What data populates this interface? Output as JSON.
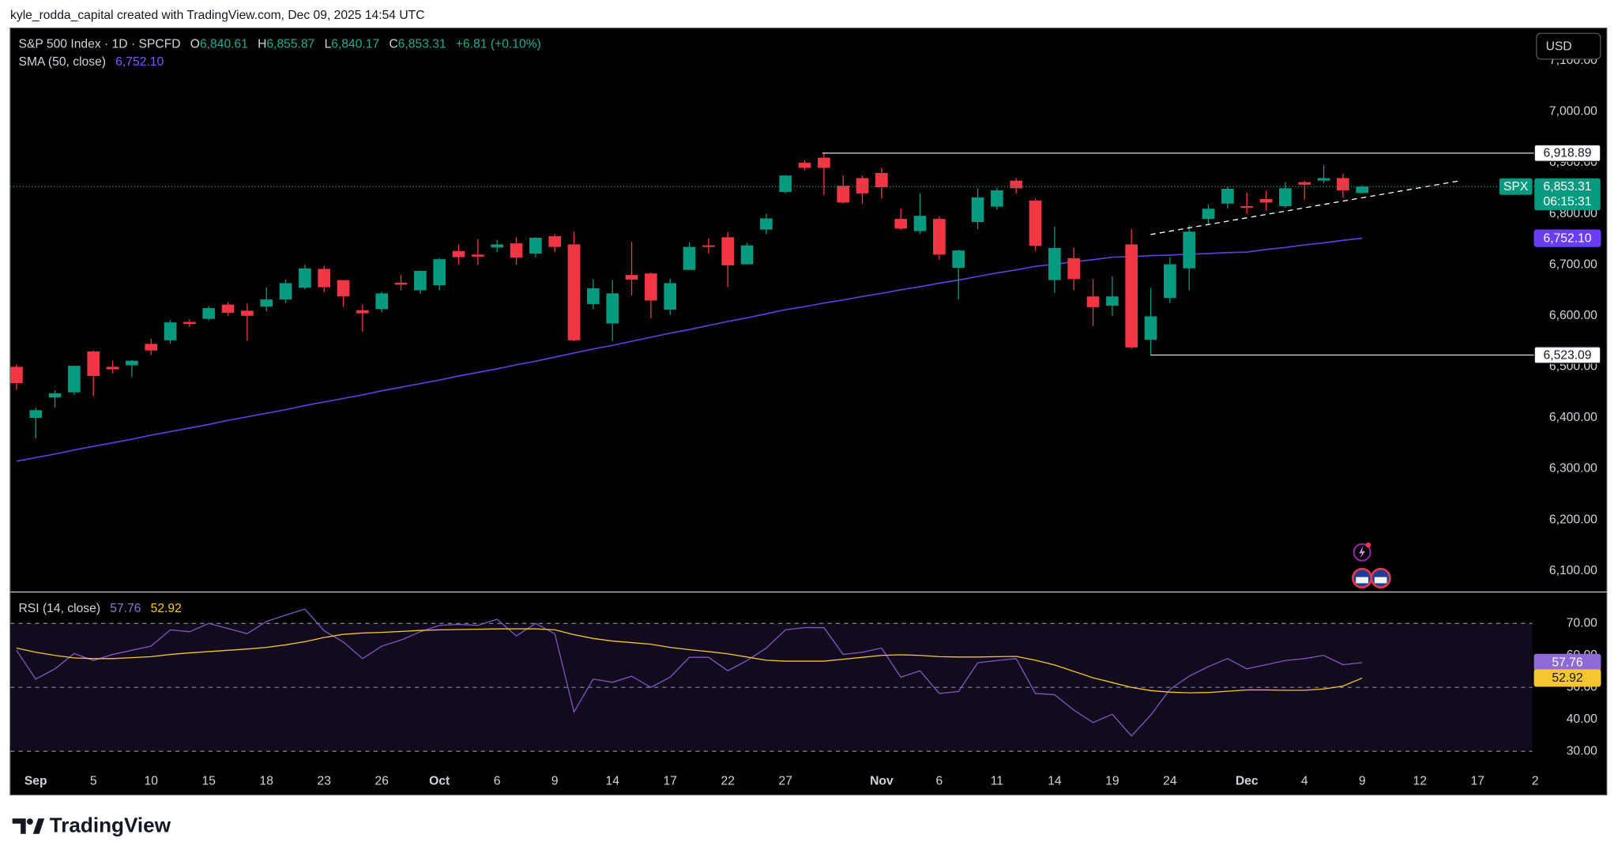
{
  "header": {
    "attribution": "kyle_rodda_capital created with TradingView.com, Dec 09, 2025 14:54 UTC",
    "currency": "USD",
    "brand": "TradingView"
  },
  "chart_data": [
    {
      "type": "candlestick",
      "title": "S&P 500 Index · 1D · SPCFD",
      "legend_ohlc": [
        {
          "key": "O",
          "value": "6,840.61"
        },
        {
          "key": "H",
          "value": "6,855.87"
        },
        {
          "key": "L",
          "value": "6,840.17"
        },
        {
          "key": "C",
          "value": "6,853.31"
        }
      ],
      "change": "+6.81 (+0.10%)",
      "categories": [
        null,
        "Sep",
        null,
        null,
        "5",
        null,
        null,
        "10",
        null,
        null,
        "15",
        null,
        null,
        "18",
        null,
        null,
        "23",
        null,
        null,
        "26",
        null,
        null,
        "Oct",
        null,
        null,
        "6",
        null,
        null,
        "9",
        null,
        null,
        "14",
        null,
        null,
        "17",
        null,
        null,
        "22",
        null,
        null,
        "27",
        null,
        null,
        null,
        null,
        "Nov",
        null,
        null,
        "6",
        null,
        null,
        "11",
        null,
        null,
        "14",
        null,
        null,
        "19",
        null,
        null,
        "24",
        null,
        null,
        null,
        "Dec",
        null,
        null,
        "4",
        null,
        null,
        "9",
        null,
        null,
        "12",
        null,
        null,
        "17",
        null,
        null,
        "2"
      ],
      "series": [
        {
          "name": "SPX",
          "up_color": "#089981",
          "down_color": "#f23645",
          "last_label": "6,853.31",
          "countdown": "06:15:31",
          "open": [
            6500,
            6400,
            6440,
            6450,
            6530,
            6500,
            6503,
            6545,
            6552,
            6588,
            6594,
            6622,
            6610,
            6618,
            6632,
            6655,
            6692,
            6670,
            6611,
            6613,
            6665,
            6650,
            6660,
            6727,
            6720,
            6734,
            6742,
            6722,
            6756,
            6740,
            6623,
            6585,
            6680,
            6683,
            6612,
            6690,
            6738,
            6754,
            6701,
            6769,
            6843,
            6900,
            6910,
            6855,
            6870,
            6880,
            6790,
            6766,
            6790,
            6694,
            6784,
            6814,
            6865,
            6826,
            6670,
            6713,
            6638,
            6620,
            6740,
            6553,
            6635,
            6693,
            6790,
            6820,
            6815,
            6829,
            6815,
            6862,
            6865,
            6870,
            6840.61,
            null,
            null,
            null,
            null,
            null,
            null,
            null,
            null,
            null
          ],
          "high": [
            6505,
            6420,
            6454,
            6502,
            6532,
            6511,
            6513,
            6555,
            6592,
            6593,
            6619,
            6627,
            6624,
            6656,
            6671,
            6700,
            6698,
            6670,
            6622,
            6647,
            6680,
            6689,
            6713,
            6740,
            6750,
            6749,
            6754,
            6754,
            6760,
            6765,
            6672,
            6670,
            6745,
            6685,
            6673,
            6744,
            6752,
            6764,
            6743,
            6800,
            6876,
            6905,
            6918.89,
            6875,
            6875,
            6890,
            6810,
            6840,
            6795,
            6730,
            6850,
            6851,
            6870,
            6830,
            6775,
            6734,
            6672,
            6677,
            6770,
            6655,
            6715,
            6777,
            6818,
            6853,
            6842,
            6845,
            6862,
            6865,
            6895,
            6878,
            6855.87,
            null,
            null,
            null,
            null,
            null,
            null,
            null,
            null,
            null
          ],
          "low": [
            6455,
            6360,
            6420,
            6445,
            6443,
            6487,
            6480,
            6523,
            6545,
            6578,
            6591,
            6600,
            6551,
            6609,
            6625,
            6652,
            6646,
            6617,
            6569,
            6607,
            6650,
            6643,
            6650,
            6701,
            6700,
            6725,
            6700,
            6715,
            6725,
            6550,
            6613,
            6550,
            6640,
            6595,
            6602,
            6690,
            6722,
            6657,
            6700,
            6760,
            6840,
            6885,
            6837,
            6820,
            6820,
            6830,
            6768,
            6760,
            6710,
            6632,
            6770,
            6808,
            6840,
            6728,
            6645,
            6650,
            6580,
            6600,
            6535,
            6523.09,
            6625,
            6650,
            6780,
            6810,
            6800,
            6806,
            6812,
            6828,
            6860,
            6832,
            6840.17,
            null,
            null,
            null,
            null,
            null,
            null,
            null,
            null,
            null
          ],
          "close": [
            6468,
            6415,
            6448,
            6502,
            6482,
            6495,
            6512,
            6532,
            6587,
            6584,
            6615,
            6606,
            6600,
            6632,
            6664,
            6693,
            6656,
            6638,
            6605,
            6644,
            6661,
            6688,
            6711,
            6715,
            6716,
            6740,
            6714,
            6753,
            6735,
            6552,
            6654,
            6644,
            6671,
            6630,
            6664,
            6735,
            6735,
            6699,
            6738,
            6791,
            6875,
            6890,
            6890,
            6822,
            6840,
            6852,
            6771,
            6796,
            6720,
            6728,
            6832,
            6846,
            6850,
            6737,
            6733,
            6672,
            6617,
            6638,
            6538,
            6599,
            6701,
            6765,
            6810,
            6849,
            6812,
            6822,
            6850,
            6857,
            6870,
            6846,
            6853.31,
            null,
            null,
            null,
            null,
            null,
            null,
            null,
            null,
            null
          ]
        },
        {
          "name": "SMA (50, close)",
          "type": "line",
          "color": "#5b3fd9",
          "last_label": "6,752.10",
          "values": [
            6315,
            6322,
            6329,
            6337,
            6344,
            6351,
            6358,
            6366,
            6373,
            6380,
            6387,
            6395,
            6402,
            6409,
            6416,
            6424,
            6431,
            6438,
            6445,
            6453,
            6460,
            6467,
            6474,
            6482,
            6489,
            6496,
            6504,
            6511,
            6519,
            6527,
            6535,
            6542,
            6550,
            6558,
            6566,
            6573,
            6581,
            6589,
            6596,
            6604,
            6612,
            6618,
            6625,
            6631,
            6638,
            6644,
            6651,
            6657,
            6664,
            6670,
            6677,
            6684,
            6690,
            6697,
            6701,
            6706,
            6710,
            6715,
            6716,
            6718,
            6719,
            6721,
            6722,
            6724,
            6725,
            6730,
            6734,
            6739,
            6743,
            6748,
            6752.1,
            null,
            null,
            null,
            null,
            null,
            null,
            null,
            null,
            null
          ]
        }
      ],
      "levels": [
        {
          "value": 6918.89,
          "label": "6,918.89"
        },
        {
          "value": 6523.09,
          "label": "6,523.09"
        }
      ],
      "ylim": [
        6059.5,
        7163.8
      ],
      "yticks": [
        {
          "value": 6100,
          "label": "6,100.00"
        },
        {
          "value": 6200,
          "label": "6,200.00"
        },
        {
          "value": 6300,
          "label": "6,300.00"
        },
        {
          "value": 6400,
          "label": "6,400.00"
        },
        {
          "value": 6500,
          "label": "6,500.00"
        },
        {
          "value": 6600,
          "label": "6,600.00"
        },
        {
          "value": 6700,
          "label": "6,700.00"
        },
        {
          "value": 6800,
          "label": "6,800.00"
        },
        {
          "value": 6900,
          "label": "6,900.00"
        },
        {
          "value": 7000,
          "label": "7,000.00"
        },
        {
          "value": 7100,
          "label": "7,100.00"
        }
      ],
      "grid": false
    },
    {
      "type": "line",
      "title": "RSI (14, close)",
      "series": [
        {
          "color": "#7e57c2",
          "last_label": "57.76",
          "values": [
            61.6,
            52.6,
            55.8,
            60.6,
            58.4,
            60.3,
            61.6,
            62.9,
            68,
            67.4,
            70,
            68.4,
            66.8,
            70.6,
            72.6,
            74.5,
            67.7,
            64.2,
            59,
            62.9,
            64.8,
            67.4,
            69.4,
            69.7,
            69.4,
            71.3,
            66.1,
            70,
            66.8,
            42.3,
            52.6,
            51.6,
            53.5,
            50,
            53.2,
            59.4,
            59.4,
            55.2,
            58.4,
            62.3,
            68,
            68.7,
            68.7,
            60.3,
            61,
            62.3,
            53.2,
            55.2,
            48.1,
            48.7,
            57.7,
            58.4,
            59,
            48.1,
            47.7,
            42.9,
            39,
            41.6,
            34.8,
            41.3,
            49.4,
            53.5,
            56.5,
            59,
            55.8,
            57.1,
            58.4,
            59,
            60,
            57.1,
            57.76,
            null,
            null,
            null,
            null,
            null,
            null,
            null,
            null,
            null
          ]
        },
        {
          "color": "#f7c62f",
          "last_label": "52.92",
          "values": [
            62.3,
            61,
            60,
            59.2,
            59,
            59,
            59.3,
            59.6,
            60.3,
            60.8,
            61.2,
            61.6,
            62,
            62.5,
            63.3,
            64.3,
            65.6,
            66.6,
            67,
            67.2,
            67.5,
            67.8,
            68,
            68.1,
            68.2,
            68.3,
            68.3,
            68.3,
            68,
            66.5,
            65.3,
            64.5,
            64,
            63.5,
            62.5,
            61.8,
            61.2,
            60.5,
            59.5,
            58.5,
            58.2,
            58.2,
            58.2,
            58.8,
            59.4,
            60,
            60.2,
            60,
            59.6,
            59.5,
            59.5,
            59.6,
            59.7,
            58.5,
            57,
            55,
            53,
            51.5,
            50,
            49,
            48.5,
            48.3,
            48.4,
            48.8,
            49.2,
            49.2,
            49.1,
            49.1,
            49.5,
            50.4,
            52.92,
            null,
            null,
            null,
            null,
            null,
            null,
            null,
            null,
            null
          ]
        }
      ],
      "levels": [
        70,
        50,
        30
      ],
      "ylim": [
        26.1,
        78.7
      ],
      "yticks": [
        {
          "value": 30,
          "label": "30.00"
        },
        {
          "value": 40,
          "label": "40.00"
        },
        {
          "value": 50,
          "label": "50.00"
        },
        {
          "value": 60,
          "label": "60.00"
        },
        {
          "value": 70,
          "label": "70.00"
        }
      ],
      "grid": false
    }
  ]
}
